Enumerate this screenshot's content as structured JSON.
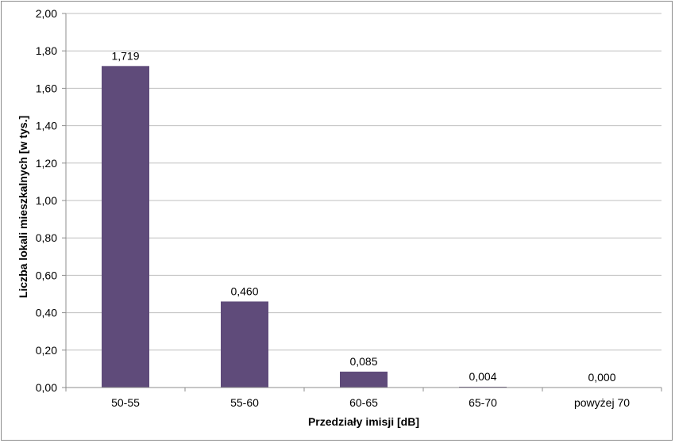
{
  "chart_data": {
    "type": "bar",
    "categories": [
      "50-55",
      "55-60",
      "60-65",
      "65-70",
      "powyżej 70"
    ],
    "values": [
      1.719,
      0.46,
      0.085,
      0.004,
      0.0
    ],
    "value_labels": [
      "1,719",
      "0,460",
      "0,085",
      "0,004",
      "0,000"
    ],
    "title": "",
    "xlabel": "Przedziały imisji [dB]",
    "ylabel": "Liczba lokali mieszkalnych [w tys.]",
    "ylim": [
      0,
      2
    ],
    "yticks": [
      0,
      0.2,
      0.4,
      0.6,
      0.8,
      1.0,
      1.2,
      1.4,
      1.6,
      1.8,
      2.0
    ],
    "ytick_labels": [
      "0,00",
      "0,20",
      "0,40",
      "0,60",
      "0,80",
      "1,00",
      "1,20",
      "1,40",
      "1,60",
      "1,80",
      "2,00"
    ],
    "grid": true,
    "legend": "none",
    "bar_color": "#5f4b7a",
    "grid_color": "#bfbfbf"
  }
}
